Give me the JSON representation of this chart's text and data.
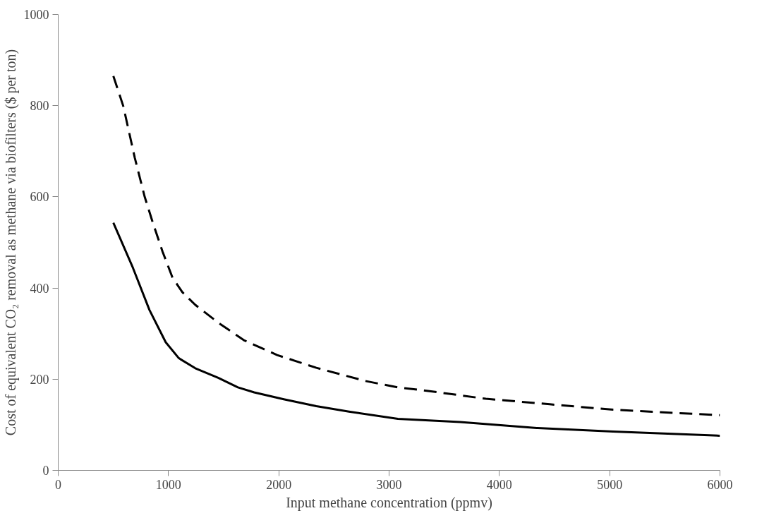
{
  "chart_data": {
    "type": "line",
    "xlabel": "Input methane concentration (ppmv)",
    "ylabel": "Cost of equivalent CO₂ removal as methane via biofilters ($ per ton)",
    "xlim": [
      0,
      6000
    ],
    "xticks": [
      0,
      1000,
      2000,
      3000,
      4000,
      5000,
      6000
    ],
    "ylim": [
      0,
      1000
    ],
    "yticks": [
      0,
      200,
      400,
      600,
      800,
      1000
    ],
    "grid": false,
    "series": [
      {
        "color": "#000000",
        "line_style": "dashed",
        "x": [
          500,
          590,
          694,
          783,
          857,
          946,
          1036,
          1125,
          1243,
          1451,
          1688,
          1985,
          2340,
          2785,
          3080,
          3300,
          3877,
          4456,
          5032,
          6000
        ],
        "values": [
          865,
          799,
          686,
          601,
          544,
          480,
          423,
          391,
          363,
          324,
          285,
          253,
          225,
          196,
          182,
          176,
          157,
          145,
          133,
          121
        ]
      },
      {
        "color": "#000000",
        "line_style": "solid",
        "x": [
          500,
          678,
          827,
          975,
          1094,
          1243,
          1451,
          1629,
          1777,
          2045,
          2340,
          2636,
          3080,
          3644,
          4339,
          5032,
          6000
        ],
        "values": [
          543,
          444,
          352,
          281,
          246,
          224,
          203,
          182,
          171,
          156,
          141,
          129,
          113,
          106,
          93,
          85,
          76
        ]
      }
    ]
  }
}
